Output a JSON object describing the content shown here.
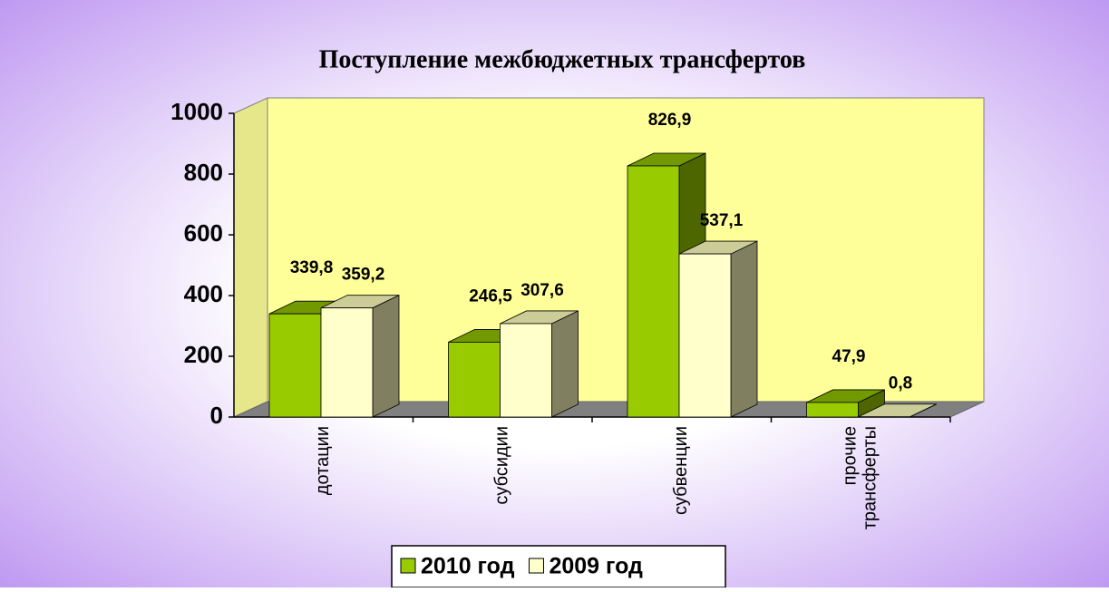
{
  "chart_data": {
    "type": "bar3d",
    "title": "Поступление межбюджетных трансфертов",
    "categories": [
      "дотации",
      "субсидии",
      "субвенции",
      "прочие трансферты"
    ],
    "series": [
      {
        "name": "2010 год",
        "color": "#99cc00",
        "values": [
          339.8,
          246.5,
          826.9,
          47.9
        ],
        "value_labels": [
          "339,8",
          "246,5",
          "826,9",
          "47,9"
        ]
      },
      {
        "name": "2009 год",
        "color": "#ffffcc",
        "values": [
          359.2,
          307.6,
          537.1,
          0.8
        ],
        "value_labels": [
          "359,2",
          "307,6",
          "537,1",
          "0,8"
        ]
      }
    ],
    "ylim": [
      0,
      1000
    ],
    "yticks": [
      0,
      200,
      400,
      600,
      800,
      1000
    ],
    "grid": false
  }
}
